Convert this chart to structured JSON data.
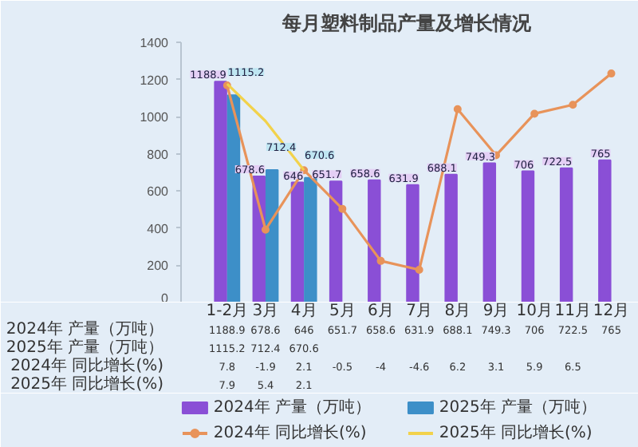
{
  "chart_data": {
    "type": "bar",
    "title": "每月塑料制品产量及增长情况",
    "categories": [
      "1-2月",
      "3月",
      "4月",
      "5月",
      "6月",
      "7月",
      "8月",
      "9月",
      "10月",
      "11月",
      "12月"
    ],
    "ylim": [
      0,
      1400
    ],
    "yticks": [
      0,
      200,
      400,
      600,
      800,
      1000,
      1200,
      1400
    ],
    "y2lim": [
      -6.8,
      10.7
    ],
    "legend": "bottom",
    "series": [
      {
        "name": "2024年 产量（万吨）",
        "color": "#8a4fd6",
        "values": [
          1188.9,
          678.6,
          646,
          651.7,
          658.6,
          631.9,
          688.1,
          749.3,
          706,
          722.5,
          765
        ],
        "value_labels": [
          "1188.9",
          "678.6",
          "646",
          "651.7",
          "658.6",
          "631.9",
          "688.1",
          "749.3",
          "706",
          "722.5",
          "765"
        ]
      },
      {
        "name": "2025年 产量（万吨）",
        "color": "#3d8fc8",
        "values": [
          1115.2,
          712.4,
          670.6,
          null,
          null,
          null,
          null,
          null,
          null,
          null,
          null
        ],
        "value_labels": [
          "1115.2",
          "712.4",
          "670.6",
          null,
          null,
          null,
          null,
          null,
          null,
          null,
          null
        ]
      },
      {
        "name": "2024年 同比增长(%)",
        "type": "line",
        "axis": "y2",
        "color": "#e8935a",
        "marker": "circle",
        "values": [
          7.8,
          -1.9,
          2.1,
          -0.5,
          -4,
          -4.6,
          6.2,
          3.1,
          5.9,
          6.5,
          8.6
        ],
        "value_labels": [
          "7.8",
          "-1.9",
          "2.1",
          "-0.5",
          "-4",
          "-4.6",
          "6.2",
          "3.1",
          "5.9",
          "6.5",
          null
        ]
      },
      {
        "name": "2025年 同比增长(%)",
        "type": "line",
        "axis": "y2",
        "color": "#f2d24b",
        "marker": "none",
        "values": [
          7.9,
          5.4,
          2.1,
          null,
          null,
          null,
          null,
          null,
          null,
          null,
          null
        ],
        "value_labels": [
          "7.9",
          "5.4",
          "2.1",
          null,
          null,
          null,
          null,
          null,
          null,
          null,
          null
        ]
      }
    ]
  }
}
